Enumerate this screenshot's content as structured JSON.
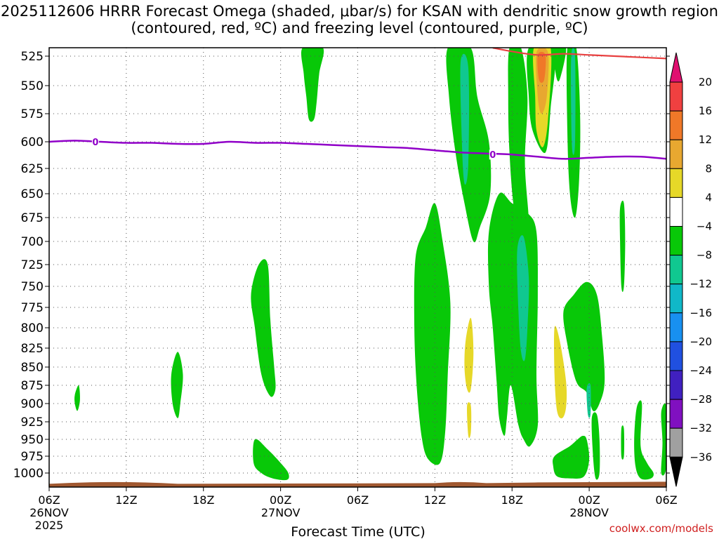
{
  "title": "2025112606 HRRR Forecast Omega (shaded, μbar/s) for KSAN with dendritic snow growth region (contoured, red, ºC) and freezing level (contoured, purple, ºC)",
  "credit": "coolwx.com/models",
  "chart_data": {
    "type": "contour",
    "xlabel": "Forecast Time (UTC)",
    "x_ticks": [
      {
        "hour": 0,
        "label": "06Z",
        "sub": "26NOV",
        "sub2": "2025"
      },
      {
        "hour": 6,
        "label": "12Z"
      },
      {
        "hour": 12,
        "label": "18Z"
      },
      {
        "hour": 18,
        "label": "00Z",
        "sub": "27NOV"
      },
      {
        "hour": 24,
        "label": "06Z"
      },
      {
        "hour": 30,
        "label": "12Z"
      },
      {
        "hour": 36,
        "label": "18Z"
      },
      {
        "hour": 42,
        "label": "00Z",
        "sub": "28NOV"
      },
      {
        "hour": 48,
        "label": "06Z"
      }
    ],
    "y_ticks": [
      525,
      550,
      575,
      600,
      625,
      650,
      675,
      700,
      725,
      750,
      775,
      800,
      825,
      850,
      875,
      900,
      925,
      950,
      975,
      1000
    ],
    "ylim": [
      1020,
      518
    ],
    "grid": true,
    "colorbar": {
      "labels": [
        "20",
        "16",
        "12",
        "8",
        "4",
        "−4",
        "−8",
        "−12",
        "−16",
        "−20",
        "−24",
        "−28",
        "−32",
        "−36"
      ],
      "colors": [
        "#f04040",
        "#f07828",
        "#e8a830",
        "#e6d828",
        "#ffffff",
        "#08c808",
        "#10c890",
        "#10b8c8",
        "#1890f0",
        "#2050e0",
        "#4020c0",
        "#8010c0",
        "#a0a0a0",
        "#000000"
      ],
      "top_arrow_color": "#e01070",
      "bottom_arrow_color": "#000000"
    },
    "freezing_level": {
      "label": "0",
      "color": "#9000c8",
      "points": [
        [
          0,
          600
        ],
        [
          2,
          599
        ],
        [
          4,
          600
        ],
        [
          6,
          601
        ],
        [
          8,
          601
        ],
        [
          10,
          602
        ],
        [
          12,
          602
        ],
        [
          14,
          600
        ],
        [
          16,
          601
        ],
        [
          18,
          601
        ],
        [
          20,
          602
        ],
        [
          22,
          603
        ],
        [
          24,
          604
        ],
        [
          26,
          605
        ],
        [
          28,
          606
        ],
        [
          30,
          608
        ],
        [
          32,
          610
        ],
        [
          34,
          611
        ],
        [
          36,
          612
        ],
        [
          38,
          614
        ],
        [
          40,
          616
        ],
        [
          42,
          615
        ],
        [
          44,
          614
        ],
        [
          46,
          614
        ],
        [
          48,
          616
        ]
      ],
      "label_points": [
        [
          3.6,
          600
        ],
        [
          34.5,
          612
        ]
      ]
    },
    "dendritic_zone": {
      "color": "#e84040",
      "points": [
        [
          34.5,
          518
        ],
        [
          36,
          521
        ],
        [
          38,
          524
        ],
        [
          40,
          523
        ],
        [
          42,
          524
        ],
        [
          44,
          525
        ],
        [
          46,
          526
        ],
        [
          48,
          527
        ]
      ]
    },
    "omega_regions": [
      {
        "color": "#08c808",
        "points": [
          [
            19.7,
            518
          ],
          [
            21.3,
            518
          ],
          [
            21.0,
            540
          ],
          [
            20.8,
            565
          ],
          [
            20.6,
            580
          ],
          [
            20.2,
            580
          ],
          [
            20.0,
            560
          ],
          [
            19.8,
            540
          ]
        ]
      },
      {
        "color": "#08c808",
        "points": [
          [
            31.0,
            518
          ],
          [
            32.8,
            518
          ],
          [
            33.3,
            560
          ],
          [
            34.2,
            600
          ],
          [
            34.3,
            650
          ],
          [
            33.5,
            685
          ],
          [
            33.0,
            700
          ],
          [
            32.3,
            660
          ],
          [
            31.6,
            610
          ],
          [
            31.1,
            560
          ]
        ]
      },
      {
        "color": "#10c890",
        "points": [
          [
            32.0,
            530
          ],
          [
            32.6,
            535
          ],
          [
            32.6,
            620
          ],
          [
            32.3,
            640
          ],
          [
            32.1,
            600
          ]
        ]
      },
      {
        "color": "#08c808",
        "points": [
          [
            35.8,
            518
          ],
          [
            36.7,
            518
          ],
          [
            37.2,
            560
          ],
          [
            37.0,
            620
          ],
          [
            37.3,
            680
          ],
          [
            37.0,
            700
          ],
          [
            36.2,
            670
          ],
          [
            35.8,
            610
          ],
          [
            35.7,
            560
          ]
        ]
      },
      {
        "color": "#08c808",
        "points": [
          [
            37.3,
            518
          ],
          [
            39.3,
            518
          ],
          [
            39.0,
            570
          ],
          [
            38.6,
            610
          ],
          [
            37.6,
            590
          ],
          [
            37.3,
            560
          ]
        ]
      },
      {
        "color": "#e6d828",
        "points": [
          [
            37.7,
            518
          ],
          [
            39.0,
            518
          ],
          [
            38.8,
            580
          ],
          [
            38.4,
            605
          ],
          [
            37.9,
            590
          ],
          [
            37.8,
            560
          ]
        ]
      },
      {
        "color": "#e8a830",
        "points": [
          [
            37.9,
            522
          ],
          [
            38.8,
            522
          ],
          [
            38.7,
            560
          ],
          [
            38.3,
            575
          ],
          [
            38.0,
            560
          ]
        ]
      },
      {
        "color": "#f07828",
        "points": [
          [
            38.0,
            524
          ],
          [
            38.6,
            524
          ],
          [
            38.5,
            545
          ],
          [
            38.1,
            545
          ]
        ]
      },
      {
        "color": "#08c808",
        "points": [
          [
            40.3,
            518
          ],
          [
            41.0,
            518
          ],
          [
            41.3,
            580
          ],
          [
            41.2,
            640
          ],
          [
            40.9,
            675
          ],
          [
            40.5,
            650
          ],
          [
            40.3,
            590
          ]
        ]
      },
      {
        "color": "#10c890",
        "points": [
          [
            40.6,
            525
          ],
          [
            40.9,
            525
          ],
          [
            40.9,
            600
          ],
          [
            40.7,
            610
          ],
          [
            40.6,
            580
          ]
        ]
      },
      {
        "color": "#08c808",
        "points": [
          [
            39.3,
            518
          ],
          [
            40.2,
            518
          ],
          [
            39.7,
            545
          ],
          [
            39.4,
            540
          ]
        ]
      },
      {
        "color": "#08c808",
        "points": [
          [
            28.5,
            717
          ],
          [
            29.3,
            685
          ],
          [
            30.0,
            660
          ],
          [
            30.6,
            700
          ],
          [
            31.2,
            770
          ],
          [
            31.0,
            860
          ],
          [
            30.8,
            940
          ],
          [
            30.4,
            985
          ],
          [
            29.5,
            980
          ],
          [
            29.0,
            950
          ],
          [
            28.6,
            880
          ],
          [
            28.4,
            800
          ]
        ]
      },
      {
        "color": "#08c808",
        "points": [
          [
            34.2,
            690
          ],
          [
            35.0,
            650
          ],
          [
            36.0,
            660
          ],
          [
            37.2,
            670
          ],
          [
            37.9,
            690
          ],
          [
            38.0,
            760
          ],
          [
            37.9,
            860
          ],
          [
            38.0,
            930
          ],
          [
            37.4,
            960
          ],
          [
            36.9,
            950
          ],
          [
            36.5,
            930
          ],
          [
            35.9,
            875
          ],
          [
            35.6,
            920
          ],
          [
            35.4,
            945
          ],
          [
            35.0,
            920
          ],
          [
            34.8,
            870
          ],
          [
            34.5,
            800
          ],
          [
            34.2,
            750
          ]
        ]
      },
      {
        "color": "#10c890",
        "points": [
          [
            36.4,
            710
          ],
          [
            36.9,
            695
          ],
          [
            37.3,
            740
          ],
          [
            37.2,
            800
          ],
          [
            37.0,
            840
          ],
          [
            36.7,
            830
          ],
          [
            36.5,
            780
          ]
        ]
      },
      {
        "color": "#e6d828",
        "points": [
          [
            32.4,
            815
          ],
          [
            32.8,
            788
          ],
          [
            33.0,
            830
          ],
          [
            32.8,
            880
          ],
          [
            32.5,
            880
          ],
          [
            32.3,
            850
          ]
        ]
      },
      {
        "color": "#e6d828",
        "points": [
          [
            32.5,
            903
          ],
          [
            32.8,
            903
          ],
          [
            32.8,
            940
          ],
          [
            32.6,
            945
          ]
        ]
      },
      {
        "color": "#e6d828",
        "points": [
          [
            39.3,
            800
          ],
          [
            39.7,
            815
          ],
          [
            40.2,
            870
          ],
          [
            40.2,
            905
          ],
          [
            39.9,
            920
          ],
          [
            39.5,
            910
          ],
          [
            39.3,
            860
          ]
        ]
      },
      {
        "color": "#08c808",
        "points": [
          [
            40.0,
            780
          ],
          [
            40.8,
            760
          ],
          [
            41.8,
            745
          ],
          [
            42.6,
            760
          ],
          [
            43.0,
            810
          ],
          [
            43.2,
            870
          ],
          [
            42.8,
            900
          ],
          [
            42.3,
            910
          ],
          [
            41.8,
            885
          ],
          [
            41.0,
            870
          ],
          [
            40.3,
            820
          ]
        ]
      },
      {
        "color": "#10c890",
        "points": [
          [
            41.8,
            880
          ],
          [
            42.1,
            875
          ],
          [
            42.1,
            915
          ],
          [
            41.9,
            915
          ]
        ]
      },
      {
        "color": "#08c808",
        "points": [
          [
            39.3,
            975
          ],
          [
            40.5,
            960
          ],
          [
            41.1,
            950
          ],
          [
            41.5,
            945
          ],
          [
            41.8,
            950
          ],
          [
            42.0,
            980
          ],
          [
            41.6,
            1005
          ],
          [
            40.6,
            1008
          ],
          [
            39.5,
            1005
          ],
          [
            39.2,
            990
          ]
        ]
      },
      {
        "color": "#08c808",
        "points": [
          [
            42.2,
            920
          ],
          [
            42.6,
            915
          ],
          [
            42.8,
            950
          ],
          [
            42.8,
            1000
          ],
          [
            42.5,
            1008
          ],
          [
            42.3,
            975
          ]
        ]
      },
      {
        "color": "#08c808",
        "points": [
          [
            45.7,
            905
          ],
          [
            46.1,
            900
          ],
          [
            46.0,
            960
          ],
          [
            46.5,
            985
          ],
          [
            47.0,
            1000
          ],
          [
            46.8,
            1008
          ],
          [
            46.0,
            1008
          ],
          [
            45.6,
            990
          ],
          [
            45.5,
            950
          ]
        ]
      },
      {
        "color": "#08c808",
        "points": [
          [
            47.6,
            912
          ],
          [
            48,
            905
          ],
          [
            48,
            990
          ],
          [
            47.6,
            1000
          ],
          [
            47.7,
            955
          ]
        ]
      },
      {
        "color": "#08c808",
        "points": [
          [
            44.4,
            665
          ],
          [
            44.7,
            660
          ],
          [
            44.8,
            700
          ],
          [
            44.7,
            750
          ],
          [
            44.5,
            750
          ],
          [
            44.4,
            700
          ]
        ]
      },
      {
        "color": "#08c808",
        "points": [
          [
            44.5,
            935
          ],
          [
            44.7,
            935
          ],
          [
            44.7,
            975
          ],
          [
            44.5,
            975
          ]
        ]
      },
      {
        "color": "#08c808",
        "points": [
          [
            15.7,
            760
          ],
          [
            16.3,
            725
          ],
          [
            17.0,
            725
          ],
          [
            17.2,
            790
          ],
          [
            17.5,
            850
          ],
          [
            17.6,
            880
          ],
          [
            17.2,
            890
          ],
          [
            16.5,
            860
          ],
          [
            16.0,
            800
          ]
        ]
      },
      {
        "color": "#08c808",
        "points": [
          [
            16.0,
            950
          ],
          [
            17.0,
            965
          ],
          [
            18.0,
            985
          ],
          [
            18.6,
            1000
          ],
          [
            18.5,
            1010
          ],
          [
            17.4,
            1008
          ],
          [
            16.5,
            1000
          ],
          [
            15.9,
            985
          ]
        ]
      },
      {
        "color": "#08c808",
        "points": [
          [
            9.5,
            860
          ],
          [
            10.0,
            830
          ],
          [
            10.4,
            860
          ],
          [
            10.2,
            900
          ],
          [
            10.0,
            920
          ],
          [
            9.6,
            900
          ]
        ]
      },
      {
        "color": "#08c808",
        "points": [
          [
            2.0,
            888
          ],
          [
            2.3,
            875
          ],
          [
            2.4,
            895
          ],
          [
            2.2,
            910
          ],
          [
            2.0,
            900
          ]
        ]
      }
    ],
    "ground": {
      "color": "#a05830",
      "pressure": 1015
    }
  }
}
